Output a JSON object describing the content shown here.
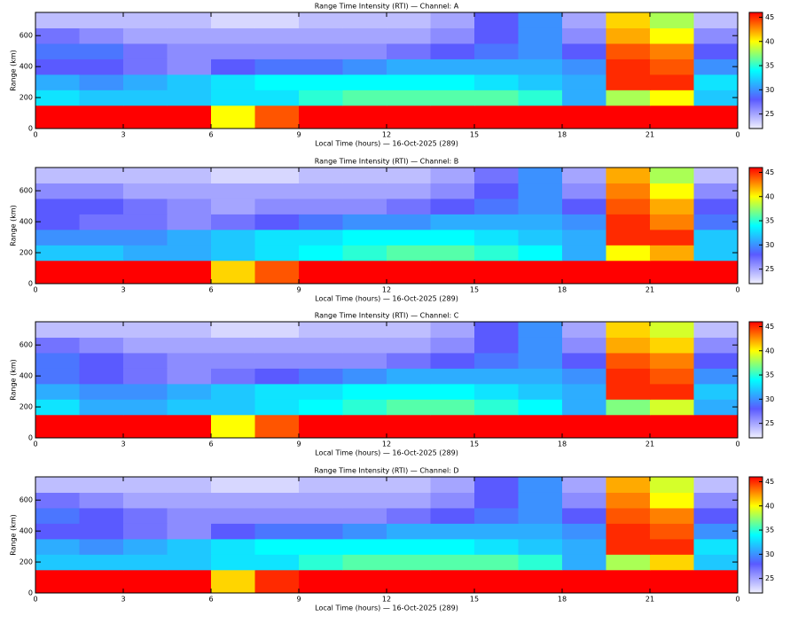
{
  "chart_data": [
    {
      "type": "heatmap",
      "title": "Range Time Intensity (RTI) — Channel: A",
      "xlabel": "Local Time (hours) — 16-Oct-2025 (289)",
      "ylabel": "Range (km)",
      "xlim": [
        0,
        24
      ],
      "ylim": [
        0,
        750
      ],
      "xticks": [
        0,
        3,
        6,
        9,
        12,
        15,
        18,
        21,
        {
          "value": 24,
          "label": "0"
        }
      ],
      "yticks": [
        0,
        200,
        400,
        600
      ],
      "clim": [
        22,
        46
      ],
      "cticks": [
        25,
        30,
        35,
        40,
        45
      ],
      "colorscale": [
        "#f0f0ff",
        "#5a5aff",
        "#00ffff",
        "#ffff00",
        "#ff0000"
      ],
      "xbins": [
        0,
        1.5,
        3,
        4.5,
        6,
        7.5,
        9,
        10.5,
        12,
        13.5,
        15,
        16.5,
        18,
        19.5,
        21,
        22.5,
        24
      ],
      "ybins": [
        0,
        150,
        250,
        350,
        450,
        550,
        650,
        750
      ],
      "z": [
        [
          46,
          46,
          46,
          46,
          40,
          44,
          46,
          46,
          46,
          46,
          46,
          46,
          46,
          46,
          46,
          46
        ],
        [
          33,
          32,
          32,
          32,
          33,
          33,
          35,
          36,
          36,
          36,
          36,
          35,
          31,
          38,
          40,
          32
        ],
        [
          31,
          30,
          31,
          32,
          33,
          34,
          34,
          34,
          34,
          34,
          33,
          32,
          31,
          45,
          45,
          33
        ],
        [
          28,
          28,
          27,
          26,
          28,
          29,
          29,
          30,
          31,
          31,
          31,
          31,
          30,
          45,
          44,
          30
        ],
        [
          29,
          29,
          27,
          26,
          26,
          26,
          26,
          26,
          27,
          28,
          29,
          30,
          28,
          44,
          43,
          28
        ],
        [
          27,
          26,
          25,
          25,
          25,
          25,
          25,
          25,
          25,
          26,
          28,
          30,
          26,
          42,
          40,
          26
        ],
        [
          24,
          24,
          24,
          24,
          23,
          23,
          24,
          24,
          24,
          25,
          28,
          30,
          25,
          41,
          38,
          24
        ]
      ]
    },
    {
      "type": "heatmap",
      "title": "Range Time Intensity (RTI) — Channel: B",
      "xlabel": "Local Time (hours) — 16-Oct-2025 (289)",
      "ylabel": "Range (km)",
      "xlim": [
        0,
        24
      ],
      "ylim": [
        0,
        750
      ],
      "xticks": [
        0,
        3,
        6,
        9,
        12,
        15,
        18,
        21,
        {
          "value": 24,
          "label": "0"
        }
      ],
      "yticks": [
        0,
        200,
        400,
        600
      ],
      "clim": [
        22,
        46
      ],
      "cticks": [
        25,
        30,
        35,
        40,
        45
      ],
      "colorscale": [
        "#f0f0ff",
        "#5a5aff",
        "#00ffff",
        "#ffff00",
        "#ff0000"
      ],
      "xbins": [
        0,
        1.5,
        3,
        4.5,
        6,
        7.5,
        9,
        10.5,
        12,
        13.5,
        15,
        16.5,
        18,
        19.5,
        21,
        22.5,
        24
      ],
      "ybins": [
        0,
        150,
        250,
        350,
        450,
        550,
        650,
        750
      ],
      "z": [
        [
          46,
          46,
          46,
          46,
          41,
          44,
          46,
          46,
          46,
          46,
          46,
          46,
          46,
          46,
          46,
          46
        ],
        [
          32,
          32,
          31,
          31,
          32,
          33,
          34,
          35,
          36,
          36,
          35,
          34,
          31,
          40,
          42,
          32
        ],
        [
          30,
          30,
          30,
          31,
          32,
          33,
          33,
          34,
          34,
          34,
          33,
          32,
          31,
          45,
          45,
          32
        ],
        [
          28,
          27,
          27,
          26,
          27,
          28,
          29,
          30,
          30,
          31,
          31,
          31,
          30,
          45,
          43,
          29
        ],
        [
          28,
          28,
          27,
          26,
          25,
          26,
          26,
          26,
          27,
          28,
          29,
          30,
          28,
          44,
          42,
          28
        ],
        [
          26,
          26,
          25,
          25,
          25,
          25,
          25,
          25,
          25,
          26,
          28,
          30,
          26,
          43,
          40,
          26
        ],
        [
          24,
          24,
          24,
          24,
          23,
          23,
          24,
          24,
          24,
          25,
          27,
          30,
          25,
          42,
          38,
          24
        ]
      ]
    },
    {
      "type": "heatmap",
      "title": "Range Time Intensity (RTI) — Channel: C",
      "xlabel": "Local Time (hours) — 16-Oct-2025 (289)",
      "ylabel": "Range (km)",
      "xlim": [
        0,
        24
      ],
      "ylim": [
        0,
        750
      ],
      "xticks": [
        0,
        3,
        6,
        9,
        12,
        15,
        18,
        21,
        {
          "value": 24,
          "label": "0"
        }
      ],
      "yticks": [
        0,
        200,
        400,
        600
      ],
      "clim": [
        22,
        46
      ],
      "cticks": [
        25,
        30,
        35,
        40,
        45
      ],
      "colorscale": [
        "#f0f0ff",
        "#5a5aff",
        "#00ffff",
        "#ffff00",
        "#ff0000"
      ],
      "xbins": [
        0,
        1.5,
        3,
        4.5,
        6,
        7.5,
        9,
        10.5,
        12,
        13.5,
        15,
        16.5,
        18,
        19.5,
        21,
        22.5,
        24
      ],
      "ybins": [
        0,
        150,
        250,
        350,
        450,
        550,
        650,
        750
      ],
      "z": [
        [
          46,
          46,
          46,
          46,
          40,
          44,
          46,
          46,
          46,
          46,
          46,
          46,
          46,
          46,
          46,
          46
        ],
        [
          33,
          31,
          31,
          32,
          32,
          33,
          34,
          35,
          36,
          36,
          35,
          34,
          31,
          37,
          39,
          31
        ],
        [
          31,
          30,
          30,
          31,
          32,
          33,
          33,
          34,
          34,
          34,
          33,
          32,
          31,
          45,
          45,
          32
        ],
        [
          29,
          28,
          27,
          26,
          27,
          28,
          29,
          30,
          31,
          31,
          31,
          31,
          30,
          45,
          44,
          30
        ],
        [
          29,
          28,
          27,
          26,
          26,
          26,
          26,
          26,
          27,
          28,
          29,
          30,
          28,
          44,
          43,
          28
        ],
        [
          27,
          26,
          25,
          25,
          25,
          25,
          25,
          25,
          25,
          26,
          28,
          30,
          26,
          42,
          41,
          26
        ],
        [
          24,
          24,
          24,
          24,
          23,
          23,
          24,
          24,
          24,
          25,
          28,
          30,
          25,
          41,
          39,
          24
        ]
      ]
    },
    {
      "type": "heatmap",
      "title": "Range Time Intensity (RTI) — Channel: D",
      "xlabel": "Local Time (hours) — 16-Oct-2025 (289)",
      "ylabel": "Range (km)",
      "xlim": [
        0,
        24
      ],
      "ylim": [
        0,
        750
      ],
      "xticks": [
        0,
        3,
        6,
        9,
        12,
        15,
        18,
        21,
        {
          "value": 24,
          "label": "0"
        }
      ],
      "yticks": [
        0,
        200,
        400,
        600
      ],
      "clim": [
        22,
        46
      ],
      "cticks": [
        25,
        30,
        35,
        40,
        45
      ],
      "colorscale": [
        "#f0f0ff",
        "#5a5aff",
        "#00ffff",
        "#ffff00",
        "#ff0000"
      ],
      "xbins": [
        0,
        1.5,
        3,
        4.5,
        6,
        7.5,
        9,
        10.5,
        12,
        13.5,
        15,
        16.5,
        18,
        19.5,
        21,
        22.5,
        24
      ],
      "ybins": [
        0,
        150,
        250,
        350,
        450,
        550,
        650,
        750
      ],
      "z": [
        [
          46,
          46,
          46,
          46,
          41,
          45,
          46,
          46,
          46,
          46,
          46,
          46,
          46,
          46,
          46,
          46
        ],
        [
          32,
          32,
          32,
          32,
          33,
          33,
          35,
          36,
          36,
          36,
          36,
          35,
          31,
          38,
          41,
          32
        ],
        [
          31,
          30,
          31,
          32,
          33,
          34,
          34,
          34,
          34,
          34,
          33,
          32,
          31,
          45,
          45,
          33
        ],
        [
          28,
          28,
          27,
          26,
          28,
          29,
          29,
          30,
          31,
          31,
          31,
          31,
          30,
          45,
          44,
          30
        ],
        [
          29,
          28,
          27,
          26,
          26,
          26,
          26,
          26,
          27,
          28,
          29,
          30,
          28,
          44,
          43,
          28
        ],
        [
          27,
          26,
          25,
          25,
          25,
          25,
          25,
          25,
          25,
          26,
          28,
          30,
          26,
          43,
          40,
          26
        ],
        [
          24,
          24,
          24,
          24,
          23,
          23,
          24,
          24,
          24,
          25,
          28,
          30,
          25,
          42,
          39,
          24
        ]
      ]
    }
  ]
}
